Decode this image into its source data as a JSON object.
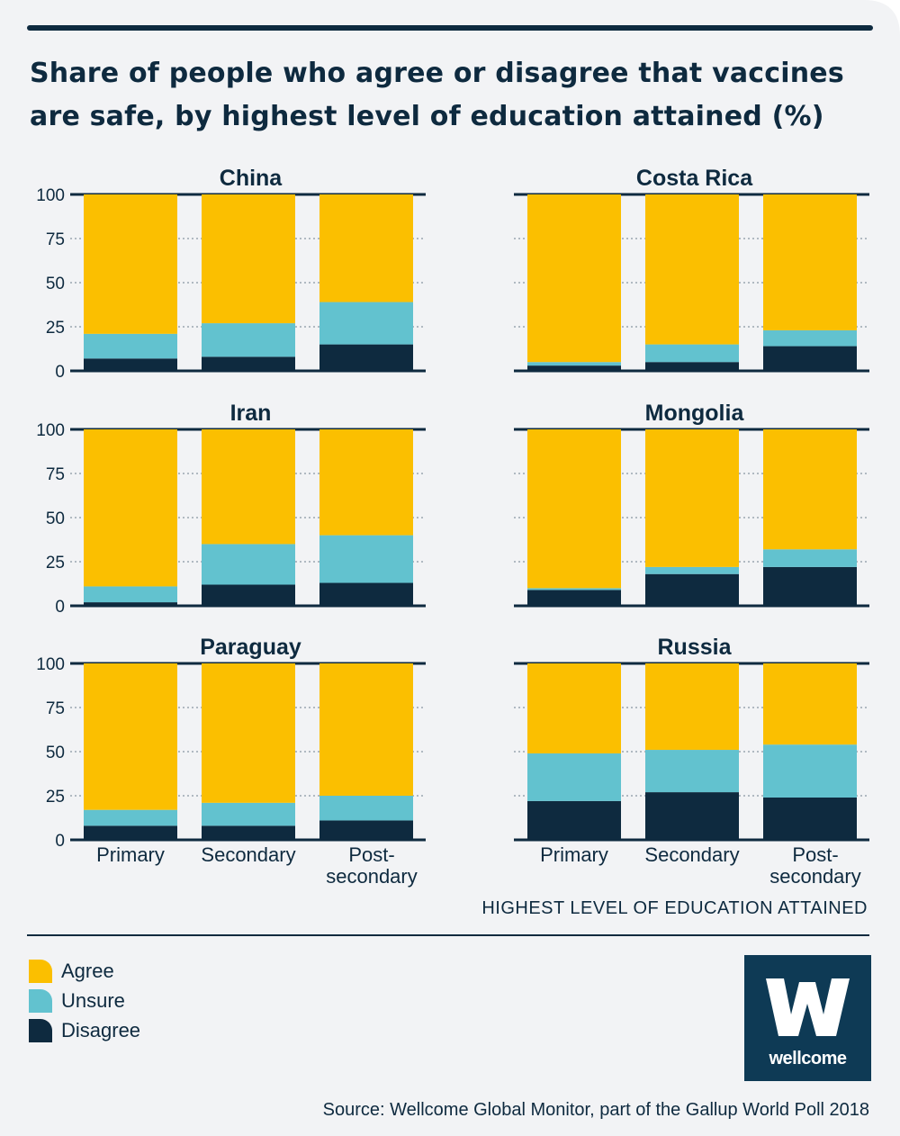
{
  "title": "Share of people who agree or disagree that vaccines are safe, by highest level of education attained (%)",
  "x_axis_title": "HIGHEST LEVEL OF EDUCATION ATTAINED",
  "source": "Source: Wellcome Global Monitor, part of the Gallup World Poll 2018",
  "logo": {
    "text": "wellcome",
    "icon": "wellcome-w-logo"
  },
  "colors": {
    "agree": "#fbbf00",
    "unsure": "#62c2cf",
    "disagree": "#0e2a3f",
    "background": "#f2f3f5",
    "logo_bg": "#0e3a55"
  },
  "legend": [
    {
      "key": "agree",
      "label": "Agree"
    },
    {
      "key": "unsure",
      "label": "Unsure"
    },
    {
      "key": "disagree",
      "label": "Disagree"
    }
  ],
  "chart_data": {
    "type": "bar",
    "stacked": true,
    "categories": [
      "Primary",
      "Secondary",
      "Post-secondary"
    ],
    "category_lines": [
      [
        "Primary"
      ],
      [
        "Secondary"
      ],
      [
        "Post-",
        "secondary"
      ]
    ],
    "yticks": [
      0,
      25,
      50,
      75,
      100
    ],
    "ylim": [
      0,
      100
    ],
    "series_order": [
      "Disagree",
      "Unsure",
      "Agree"
    ],
    "panels": [
      {
        "title": "China",
        "disagree": [
          7,
          8,
          15
        ],
        "unsure": [
          14,
          19,
          24
        ],
        "agree": [
          79,
          73,
          61
        ]
      },
      {
        "title": "Costa Rica",
        "disagree": [
          3,
          5,
          14
        ],
        "unsure": [
          2,
          10,
          9
        ],
        "agree": [
          95,
          85,
          77
        ]
      },
      {
        "title": "Iran",
        "disagree": [
          2,
          12,
          13
        ],
        "unsure": [
          9,
          23,
          27
        ],
        "agree": [
          89,
          65,
          60
        ]
      },
      {
        "title": "Mongolia",
        "disagree": [
          9,
          18,
          22
        ],
        "unsure": [
          1,
          4,
          10
        ],
        "agree": [
          90,
          78,
          68
        ]
      },
      {
        "title": "Paraguay",
        "disagree": [
          8,
          8,
          11
        ],
        "unsure": [
          9,
          13,
          14
        ],
        "agree": [
          83,
          79,
          75
        ]
      },
      {
        "title": "Russia",
        "disagree": [
          22,
          27,
          24
        ],
        "unsure": [
          27,
          24,
          30
        ],
        "agree": [
          51,
          49,
          46
        ]
      }
    ]
  }
}
